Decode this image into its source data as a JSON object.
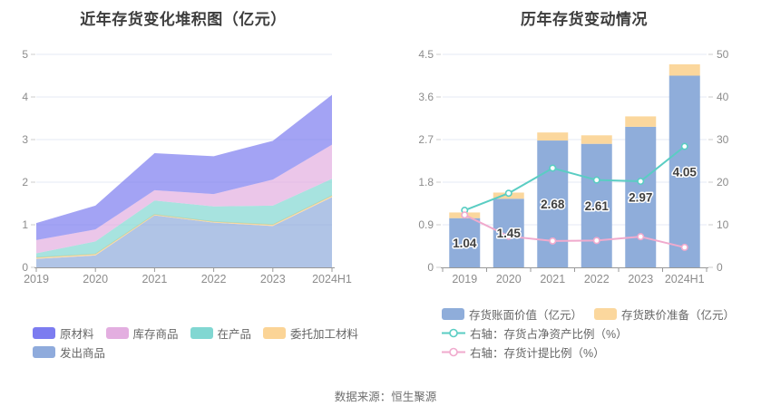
{
  "page": {
    "footer": "数据来源：恒生聚源"
  },
  "colors": {
    "title": "#3d3d3d",
    "grid_line": "#e5e8f5",
    "axis_line": "#999999",
    "axis_tick": "#cccccc",
    "axis_label": "#8c8c8c",
    "legend_text": "#666666",
    "bar_label_fill": "#404040",
    "bar_label_stroke": "#ffffff"
  },
  "chart_data": [
    {
      "type": "area",
      "title": "近年存货变化堆积图（亿元）",
      "categories": [
        "2019",
        "2020",
        "2021",
        "2022",
        "2023",
        "2024H1"
      ],
      "stacked": true,
      "grid": true,
      "ylim": [
        0,
        5
      ],
      "ytick_labels": [
        "0",
        "1",
        "2",
        "3",
        "4",
        "5"
      ],
      "series": [
        {
          "name": "发出商品",
          "color": "#8fabdc",
          "values": [
            0.2,
            0.28,
            1.22,
            1.05,
            0.97,
            1.65
          ]
        },
        {
          "name": "委托加工材料",
          "color": "#fbd496",
          "values": [
            0.03,
            0.03,
            0.02,
            0.02,
            0.03,
            0.03
          ]
        },
        {
          "name": "在产品",
          "color": "#81d7d2",
          "values": [
            0.1,
            0.3,
            0.33,
            0.36,
            0.45,
            0.4
          ]
        },
        {
          "name": "库存商品",
          "color": "#e3aee0",
          "values": [
            0.31,
            0.28,
            0.24,
            0.29,
            0.61,
            0.8
          ]
        },
        {
          "name": "原材料",
          "color": "#7c7cf0",
          "values": [
            0.4,
            0.56,
            0.87,
            0.89,
            0.91,
            1.17
          ]
        }
      ],
      "stack_totals": [
        1.04,
        1.45,
        2.68,
        2.61,
        2.97,
        4.05
      ],
      "legend_rows": [
        [
          "原材料",
          "库存商品",
          "在产品",
          "委托加工材料"
        ],
        [
          "发出商品"
        ]
      ],
      "area_opacity": 0.7
    },
    {
      "type": "bar",
      "title": "历年存货变动情况",
      "categories": [
        "2019",
        "2020",
        "2021",
        "2022",
        "2023",
        "2024H1"
      ],
      "grid": true,
      "left_axis": {
        "min": 0,
        "max": 4.5,
        "tick_labels": [
          "0",
          "0.9",
          "1.8",
          "2.7",
          "3.6",
          "4.5"
        ]
      },
      "right_axis": {
        "min": 0,
        "max": 50,
        "tick_labels": [
          "0",
          "10",
          "20",
          "30",
          "40",
          "50"
        ]
      },
      "bar_series": [
        {
          "name": "存货账面价值（亿元）",
          "color": "#8fadda",
          "values": [
            1.04,
            1.45,
            2.68,
            2.61,
            2.97,
            4.05
          ],
          "labels": [
            "1.04",
            "1.45",
            "2.68",
            "2.61",
            "2.97",
            "4.05"
          ]
        },
        {
          "name": "存货跌价准备（亿元）",
          "color": "#fbd79d",
          "values": [
            0.12,
            0.13,
            0.17,
            0.18,
            0.22,
            0.24
          ]
        }
      ],
      "line_series": [
        {
          "name": "右轴：存货占净资产比例（%）",
          "color": "#5acdc3",
          "axis": "right",
          "values": [
            13.4,
            17.4,
            23.3,
            20.5,
            20.2,
            28.4
          ]
        },
        {
          "name": "右轴：存货计提比例（%）",
          "color": "#f0aacd",
          "axis": "right",
          "values": [
            12.3,
            7.3,
            6.2,
            6.3,
            7.2,
            4.7
          ]
        }
      ]
    }
  ]
}
